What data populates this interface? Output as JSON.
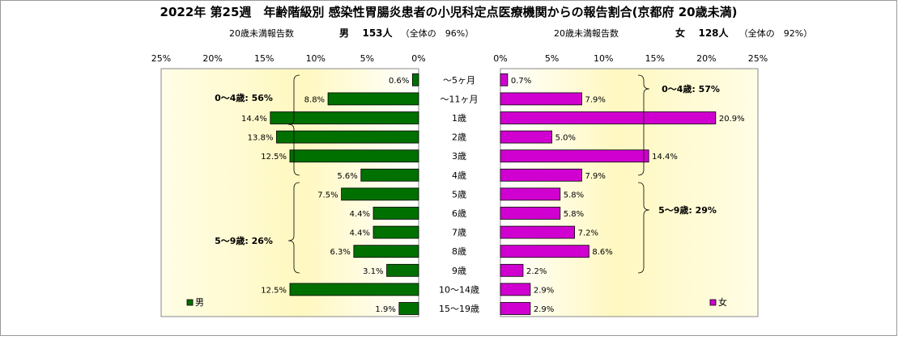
{
  "title": "2022年 第25週　年齢階級別 感染性胃腸炎患者の小児科定点医療機関からの報告割合(京都府 20歳未満)",
  "male_header": {
    "caption": "20歳未満報告数",
    "sex": "男",
    "count": "153人",
    "share": "（全体の　96%）"
  },
  "female_header": {
    "caption": "20歳未満報告数",
    "sex": "女",
    "count": "128人",
    "share": "（全体の　92%）"
  },
  "chart_data": {
    "type": "bar",
    "orientation": "horizontal-population-pyramid",
    "categories": [
      "～5ヶ月",
      "～11ヶ月",
      "1歳",
      "2歳",
      "3歳",
      "4歳",
      "5歳",
      "6歳",
      "7歳",
      "8歳",
      "9歳",
      "10～14歳",
      "15～19歳"
    ],
    "xlim": [
      0,
      25
    ],
    "x_ticks": [
      "25%",
      "20%",
      "15%",
      "10%",
      "5%",
      "0%"
    ],
    "x_ticks_right": [
      "0%",
      "5%",
      "10%",
      "15%",
      "20%",
      "25%"
    ],
    "series": [
      {
        "name": "男",
        "side": "left",
        "color": "#007000",
        "values": [
          0.6,
          8.8,
          14.4,
          13.8,
          12.5,
          5.6,
          7.5,
          4.4,
          4.4,
          6.3,
          3.1,
          12.5,
          1.9
        ],
        "labels": [
          "0.6%",
          "8.8%",
          "14.4%",
          "13.8%",
          "12.5%",
          "5.6%",
          "7.5%",
          "4.4%",
          "4.4%",
          "6.3%",
          "3.1%",
          "12.5%",
          "1.9%"
        ]
      },
      {
        "name": "女",
        "side": "right",
        "color": "#d000d0",
        "values": [
          0.7,
          7.9,
          20.9,
          5.0,
          14.4,
          7.9,
          5.8,
          5.8,
          7.2,
          8.6,
          2.2,
          2.9,
          2.9
        ],
        "labels": [
          "0.7%",
          "7.9%",
          "20.9%",
          "5.0%",
          "14.4%",
          "7.9%",
          "5.8%",
          "5.8%",
          "7.2%",
          "8.6%",
          "2.2%",
          "2.9%",
          "2.9%"
        ]
      }
    ],
    "annotations": {
      "male_0_4": "0～4歳: 56%",
      "male_5_9": "5～9歳: 26%",
      "female_0_4": "0～4歳: 57%",
      "female_5_9": "5～9歳: 29%"
    },
    "legend": {
      "male": "男",
      "female": "女",
      "placement": "bottom-inside"
    },
    "grid": false
  }
}
